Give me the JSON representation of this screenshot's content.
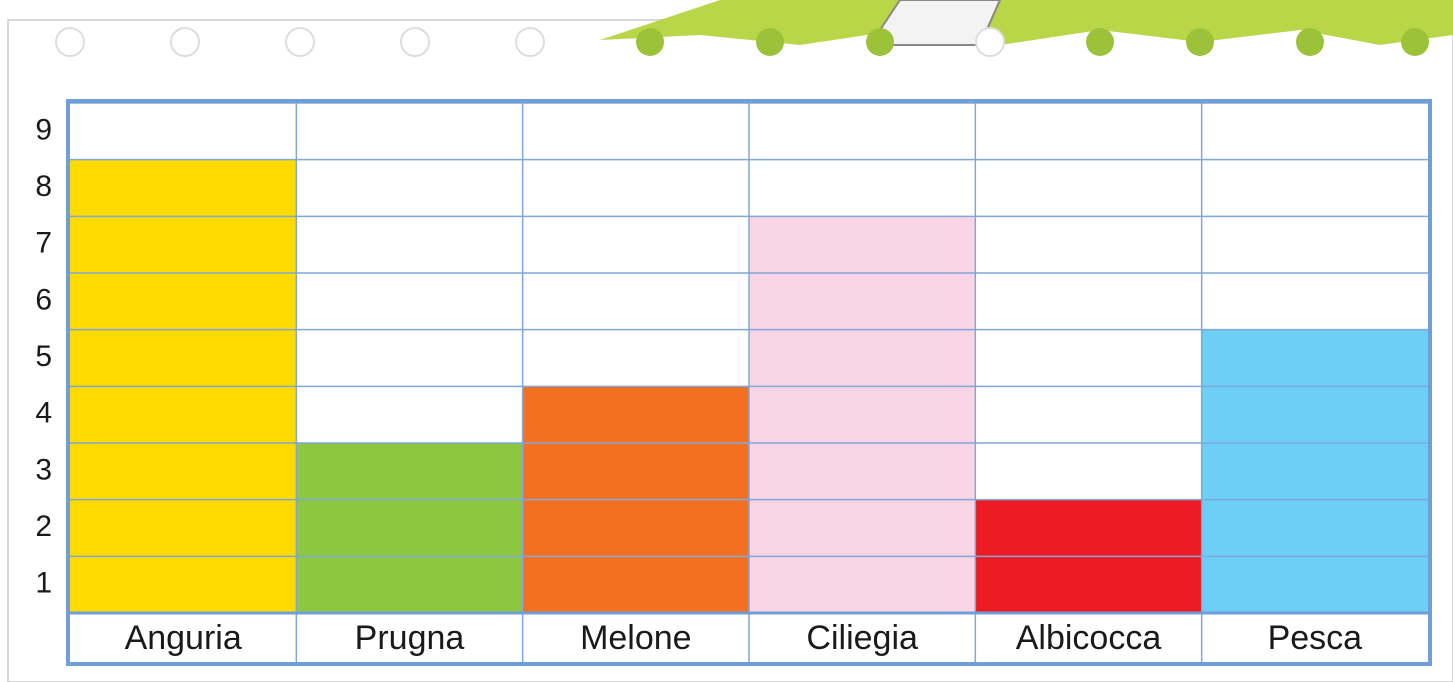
{
  "chart_data": {
    "type": "bar",
    "categories": [
      "Anguria",
      "Prugna",
      "Melone",
      "Ciliegia",
      "Albicocca",
      "Pesca"
    ],
    "values": [
      8,
      3,
      4,
      7,
      2,
      5
    ],
    "colors": [
      "#fedb00",
      "#8dc63f",
      "#f37021",
      "#f9d5e5",
      "#ed1c24",
      "#6dcff6"
    ],
    "ylim": [
      0,
      9
    ],
    "yticks": [
      1,
      2,
      3,
      4,
      5,
      6,
      7,
      8,
      9
    ],
    "grid": true
  }
}
